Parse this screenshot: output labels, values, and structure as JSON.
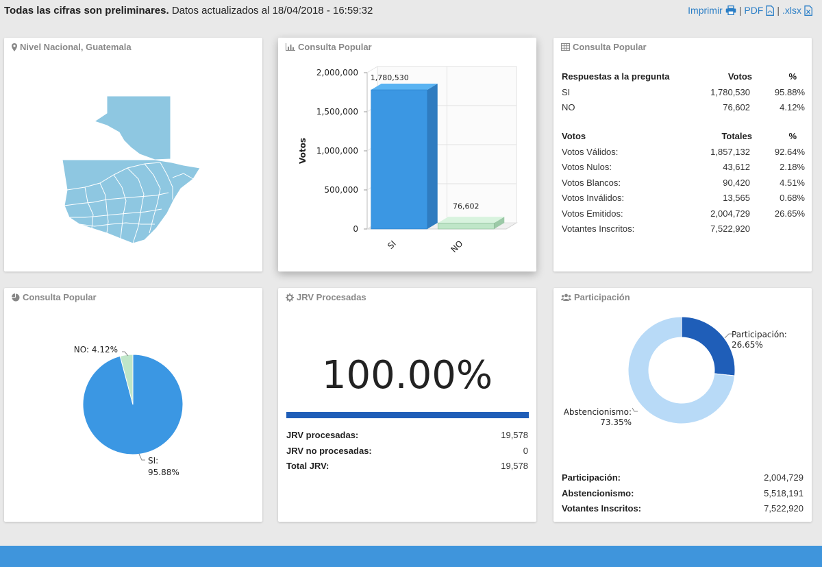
{
  "header": {
    "notice_bold": "Todas las cifras son preliminares.",
    "notice_rest": " Datos actualizados al 18/04/2018 - 16:59:32",
    "print_label": "Imprimir",
    "pdf_label": "PDF",
    "xlsx_label": ".xlsx",
    "separator": "|"
  },
  "map_panel": {
    "title": "Nivel Nacional, Guatemala",
    "map_color": "#8ec7e1"
  },
  "bar_panel": {
    "title": "Consulta Popular",
    "chart_data": {
      "type": "bar",
      "categories": [
        "SI",
        "NO"
      ],
      "values": [
        1780530,
        76602
      ],
      "value_labels": [
        "1,780,530",
        "76,602"
      ],
      "ylabel": "Votos",
      "ylim": [
        0,
        2000000
      ],
      "yticks": [
        0,
        500000,
        1000000,
        1500000,
        2000000
      ],
      "ytick_labels": [
        "0",
        "500,000",
        "1,000,000",
        "1,500,000",
        "2,000,000"
      ],
      "colors": [
        "#3b97e3",
        "#bfe6c8"
      ]
    }
  },
  "table_panel": {
    "title": "Consulta Popular",
    "answers_header": [
      "Respuestas a la pregunta",
      "Votos",
      "%"
    ],
    "answers": [
      [
        "SI",
        "1,780,530",
        "95.88%"
      ],
      [
        "NO",
        "76,602",
        "4.12%"
      ]
    ],
    "votes_header": [
      "Votos",
      "Totales",
      "%"
    ],
    "votes": [
      [
        "Votos Válidos:",
        "1,857,132",
        "92.64%"
      ],
      [
        "Votos Nulos:",
        "43,612",
        "2.18%"
      ],
      [
        "Votos Blancos:",
        "90,420",
        "4.51%"
      ],
      [
        "Votos Inválidos:",
        "13,565",
        "0.68%"
      ],
      [
        "Votos Emitidos:",
        "2,004,729",
        "26.65%"
      ],
      [
        "Votantes Inscritos:",
        "7,522,920",
        ""
      ]
    ]
  },
  "pie_panel": {
    "title": "Consulta Popular",
    "chart_data": {
      "type": "pie",
      "labels": [
        "SI",
        "NO"
      ],
      "values": [
        95.88,
        4.12
      ],
      "label_text": [
        "SI:",
        "95.88%",
        "NO: 4.12%"
      ],
      "colors": [
        "#3b97e3",
        "#bfe6c8"
      ]
    }
  },
  "jrv_panel": {
    "title": "JRV Procesadas",
    "percent_text": "100.00%",
    "progress": 1.0,
    "rows": [
      [
        "JRV procesadas:",
        "19,578"
      ],
      [
        "JRV no procesadas:",
        "0"
      ],
      [
        "Total JRV:",
        "19,578"
      ]
    ]
  },
  "participation_panel": {
    "title": "Participación",
    "chart_data": {
      "type": "pie",
      "donut": true,
      "labels": [
        "Participación",
        "Abstencionismo"
      ],
      "values": [
        26.65,
        73.35
      ],
      "label_text": [
        "Participación:",
        "26.65%",
        "Abstencionismo:",
        "73.35%"
      ],
      "colors": [
        "#1f5eb8",
        "#b8daf7"
      ]
    },
    "rows": [
      [
        "Participación:",
        "2,004,729"
      ],
      [
        "Abstencionismo:",
        "5,518,191"
      ],
      [
        "Votantes Inscritos:",
        "7,522,920"
      ]
    ]
  },
  "colors": {
    "accent": "#2a7ec6",
    "footer": "#3f95dc",
    "background": "#e9e9e9"
  }
}
